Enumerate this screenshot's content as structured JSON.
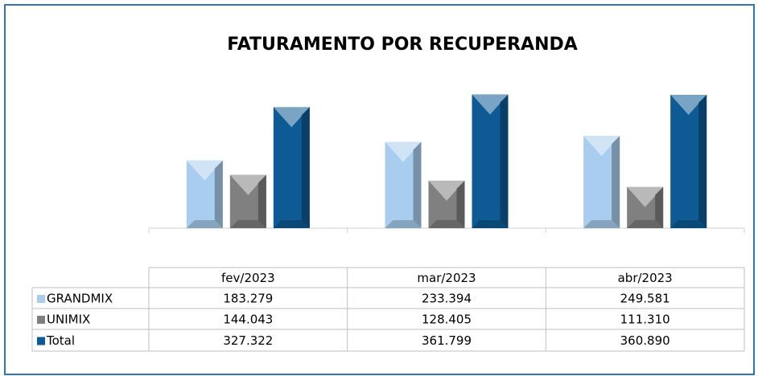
{
  "chart_data": {
    "type": "bar",
    "title": "FATURAMENTO POR RECUPERANDA",
    "categories": [
      "fev/2023",
      "mar/2023",
      "abr/2023"
    ],
    "series": [
      {
        "name": "GRANDMIX",
        "color": "#a9cdee",
        "values": [
          183279,
          233394,
          249581
        ],
        "value_labels": [
          "183.279",
          "233.394",
          "249.581"
        ]
      },
      {
        "name": "UNIMIX",
        "color": "#808080",
        "values": [
          144043,
          128405,
          111310
        ],
        "value_labels": [
          "144.043",
          "128.405",
          "111.310"
        ]
      },
      {
        "name": "Total",
        "color": "#0d5a94",
        "values": [
          327322,
          361799,
          360890
        ],
        "value_labels": [
          "327.322",
          "361.799",
          "360.890"
        ]
      }
    ],
    "ylim": [
      0,
      400000
    ]
  }
}
